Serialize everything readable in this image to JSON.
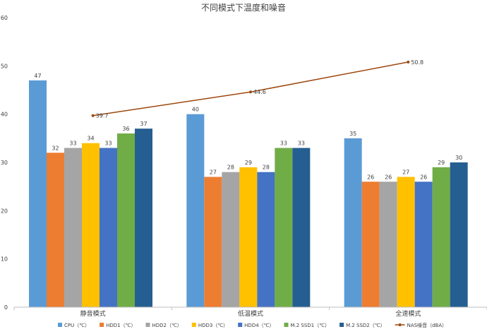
{
  "chart_data": {
    "type": "bar",
    "title": "不同模式下温度和噪音",
    "categories": [
      "静音模式",
      "低温模式",
      "全速模式"
    ],
    "ylim": [
      0,
      60
    ],
    "yticks": [
      0,
      10,
      20,
      30,
      40,
      50,
      60
    ],
    "grid": false,
    "legend_position": "bottom",
    "series": [
      {
        "name": "CPU（℃）",
        "values": [
          47,
          40,
          35
        ],
        "color": "#5B9BD5"
      },
      {
        "name": "HDD1（℃）",
        "values": [
          32,
          27,
          26
        ],
        "color": "#ED7D31"
      },
      {
        "name": "HDD2（℃）",
        "values": [
          33,
          28,
          26
        ],
        "color": "#A5A5A5"
      },
      {
        "name": "HDD3（℃）",
        "values": [
          34,
          29,
          27
        ],
        "color": "#FFC000"
      },
      {
        "name": "HDD4（℃）",
        "values": [
          33,
          28,
          26
        ],
        "color": "#4472C4"
      },
      {
        "name": "M.2 SSD1（℃）",
        "values": [
          36,
          33,
          29
        ],
        "color": "#70AD47"
      },
      {
        "name": "M.2 SSD2（℃）",
        "values": [
          37,
          33,
          30
        ],
        "color": "#255E91"
      }
    ],
    "line_series": {
      "name": "NAS噪音（dBA）",
      "values": [
        39.7,
        44.6,
        50.8
      ],
      "color": "#9E480E"
    }
  }
}
